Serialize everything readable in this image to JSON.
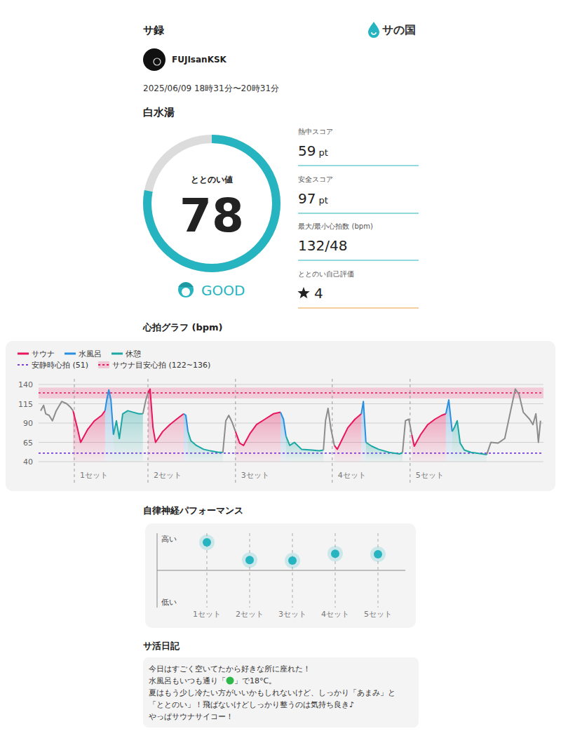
{
  "header": {
    "title": "サ録",
    "brand": "サの国",
    "user": "FUJIsanKSK",
    "datetime": "2025/06/09 18時31分〜20時31分",
    "facility": "白水湯"
  },
  "score": {
    "label": "ととのい値",
    "value": 78,
    "range": [
      0,
      100
    ],
    "rating": "GOOD"
  },
  "stats": [
    {
      "label": "熱中スコア",
      "value": 59,
      "unit": "pt"
    },
    {
      "label": "安全スコア",
      "value": 97,
      "unit": "pt"
    },
    {
      "label": "最大/最小心拍数 (bpm)",
      "value": "132/48"
    },
    {
      "label": "ととのい自己評価",
      "value": 4
    }
  ],
  "chart_data": [
    {
      "type": "line",
      "title": "心拍グラフ (bpm)",
      "x": [
        0.5,
        1.2,
        1.7,
        2.5,
        3.3,
        4.2,
        5.5,
        6.7,
        7.5,
        8.2,
        9.2,
        10,
        11.7,
        13.3,
        15,
        15.8,
        16.2,
        16.7,
        17.2,
        17.8,
        18.5,
        19.2,
        20,
        21.2,
        22.5,
        23.8,
        24.8,
        25.5,
        26,
        26.5,
        27.2,
        27.8,
        29.5,
        31.2,
        32.8,
        34.5,
        35,
        35.5,
        36.2,
        37.5,
        39.2,
        40.8,
        42.8,
        43.8,
        44.5,
        45.2,
        46,
        46.8,
        47.8,
        48.7,
        50.2,
        51.8,
        53.8,
        55.8,
        57.5,
        58.2,
        58.8,
        59.7,
        60.8,
        62.5,
        65,
        66.7,
        67.7,
        68.2,
        68.8,
        69.5,
        70.3,
        71,
        71.8,
        73.5,
        75.2,
        76.7,
        77.2,
        77.8,
        79.2,
        80.8,
        83.3,
        85.8,
        86.5,
        87.2,
        88,
        88.7,
        89.3,
        90.8,
        92.5,
        94.2,
        95.8,
        96.8,
        97.5,
        98.3,
        98.8,
        99.5,
        100.2,
        101.2,
        102.8,
        105.5,
        106.5,
        107.5,
        109.2,
        110.8,
        112.2,
        113.3,
        114.2,
        115.2,
        116.7,
        117.5,
        118.2,
        118.8,
        119.3
      ],
      "xlim": [
        0,
        120
      ],
      "ylim": [
        40,
        140
      ],
      "yticks": [
        40,
        65,
        90,
        115,
        140
      ],
      "grid": true,
      "tick_labels": "y",
      "legend": "top-left",
      "series": [
        {
          "name": "サウナ",
          "color": "#e8175d",
          "values": [
            null,
            null,
            null,
            null,
            null,
            null,
            null,
            null,
            null,
            106,
            84,
            65,
            82,
            93,
            100,
            106,
            null,
            null,
            null,
            null,
            null,
            null,
            null,
            null,
            null,
            null,
            null,
            null,
            129,
            134,
            84,
            65,
            79,
            88,
            95,
            102,
            null,
            null,
            null,
            null,
            null,
            null,
            null,
            null,
            null,
            null,
            null,
            79,
            64,
            61,
            76,
            88,
            95,
            102,
            104,
            null,
            null,
            null,
            null,
            null,
            null,
            null,
            null,
            null,
            null,
            null,
            61,
            56,
            65,
            84,
            95,
            102,
            null,
            null,
            null,
            null,
            null,
            null,
            null,
            null,
            null,
            75,
            60,
            75,
            88,
            95,
            100,
            102,
            null,
            null,
            null,
            null,
            null,
            null,
            null,
            null,
            null,
            null,
            null,
            null,
            null,
            null,
            null,
            null,
            null,
            null,
            null,
            null,
            null
          ]
        },
        {
          "name": "水風呂",
          "color": "#2b8fe0",
          "values": [
            null,
            null,
            null,
            null,
            null,
            null,
            null,
            null,
            null,
            null,
            null,
            null,
            null,
            null,
            null,
            106,
            120,
            133,
            120,
            75,
            null,
            null,
            null,
            null,
            null,
            null,
            null,
            null,
            null,
            null,
            null,
            null,
            null,
            null,
            null,
            102,
            100,
            79,
            null,
            null,
            null,
            null,
            null,
            null,
            null,
            null,
            null,
            null,
            null,
            null,
            null,
            null,
            null,
            null,
            104,
            95,
            73,
            null,
            null,
            null,
            null,
            null,
            null,
            null,
            null,
            null,
            null,
            null,
            null,
            null,
            null,
            102,
            118,
            65,
            null,
            null,
            null,
            null,
            null,
            null,
            null,
            null,
            null,
            null,
            null,
            null,
            null,
            102,
            120,
            79,
            null,
            null,
            null,
            null,
            null,
            null,
            null,
            null,
            null,
            null,
            null,
            null,
            null,
            null,
            null,
            null,
            null,
            null,
            null
          ]
        },
        {
          "name": "休憩",
          "color": "#1ba8a5",
          "values": [
            null,
            null,
            null,
            null,
            null,
            null,
            null,
            null,
            null,
            null,
            null,
            null,
            null,
            null,
            null,
            null,
            null,
            null,
            null,
            75,
            93,
            70,
            102,
            106,
            104,
            102,
            102,
            null,
            null,
            null,
            null,
            null,
            null,
            null,
            null,
            null,
            null,
            79,
            67,
            61,
            56,
            54,
            52,
            52,
            null,
            null,
            null,
            null,
            null,
            null,
            null,
            null,
            null,
            null,
            null,
            null,
            73,
            61,
            65,
            56,
            55,
            54,
            55,
            null,
            null,
            null,
            null,
            null,
            null,
            null,
            null,
            null,
            null,
            65,
            60,
            56,
            52,
            50,
            52,
            null,
            null,
            null,
            null,
            null,
            null,
            null,
            null,
            null,
            null,
            79,
            84,
            93,
            64,
            55,
            52,
            50,
            49,
            null,
            null,
            null,
            null,
            null,
            null,
            null,
            null,
            null,
            null,
            null,
            null
          ]
        },
        {
          "color": "#8c8c8c",
          "values": [
            106,
            113,
            102,
            100,
            93,
            106,
            118,
            115,
            111,
            106,
            null,
            null,
            null,
            null,
            null,
            null,
            null,
            null,
            null,
            null,
            null,
            null,
            null,
            null,
            null,
            null,
            102,
            120,
            129,
            null,
            null,
            null,
            null,
            null,
            null,
            null,
            null,
            null,
            null,
            null,
            null,
            null,
            null,
            52,
            93,
            100,
            91,
            79,
            null,
            null,
            null,
            null,
            null,
            null,
            null,
            null,
            null,
            null,
            null,
            null,
            null,
            null,
            55,
            93,
            109,
            82,
            61,
            null,
            null,
            null,
            null,
            null,
            null,
            null,
            null,
            null,
            null,
            null,
            52,
            93,
            95,
            75,
            null,
            null,
            null,
            null,
            null,
            null,
            null,
            null,
            null,
            null,
            null,
            null,
            null,
            null,
            49,
            65,
            64,
            70,
            106,
            134,
            127,
            104,
            95,
            88,
            102,
            65,
            93
          ]
        }
      ],
      "reference_lines": [
        {
          "name": "安静時心拍 (51)",
          "value": 51,
          "color": "#7b3fe4",
          "line_style": "dotted"
        }
      ],
      "bands": [
        {
          "name": "サウナ目安心拍 (122~136)",
          "range": [
            122,
            136
          ],
          "color": "#e8175d",
          "line_style": "dotted"
        }
      ],
      "set_markers": {
        "x": [
          8.5,
          26,
          46.8,
          69.8,
          88.3
        ],
        "labels": [
          "1セット",
          "2セット",
          "3セット",
          "4セット",
          "5セット"
        ]
      }
    },
    {
      "type": "scatter",
      "title": "自律神経パフォーマンス",
      "categories": [
        "1セット",
        "2セット",
        "3セット",
        "4セット",
        "5セット"
      ],
      "values": [
        0.89,
        0.33,
        0.31,
        0.53,
        0.51
      ],
      "ylim": [
        -1,
        1
      ],
      "yticks": [
        {
          "value": 1,
          "label": "高い"
        },
        {
          "value": -1,
          "label": "低い"
        }
      ],
      "tick_labels": "y",
      "color": "#26b5c0",
      "marker": "circle"
    }
  ],
  "diary": {
    "title": "サ活日記",
    "lines": [
      "今日はすごく空いてたから好きな所に座れた！",
      [
        "水風呂もいつも通り「",
        "」で18°C。"
      ],
      "夏はもう少し冷たい方がいいかもしれないけど、しっかり「あまみ」と",
      "「ととのい」！飛ばないけどしっかり整うのは気持ち良き♪",
      "やっぱサウナサイコー！"
    ]
  }
}
